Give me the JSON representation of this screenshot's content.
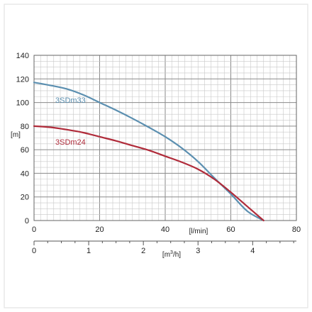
{
  "chart_data": {
    "type": "line",
    "x_flow": {
      "label": "[l/min]",
      "range": [
        0,
        80
      ],
      "ticks": [
        0,
        20,
        40,
        60,
        80
      ],
      "minor_step": 2
    },
    "x_flow_m3h": {
      "label_base": "[m",
      "label_sup": "3",
      "label_tail": "/h]",
      "ticks": [
        0,
        1,
        2,
        3,
        4
      ],
      "minor_per_major": 4
    },
    "y": {
      "label": "[m]",
      "range": [
        0,
        140
      ],
      "ticks": [
        0,
        20,
        40,
        60,
        80,
        100,
        120,
        140
      ],
      "minor_step": 5
    },
    "grid": true,
    "series": [
      {
        "name": "3SDm33",
        "color": "#5b8fb0",
        "x": [
          0,
          5,
          10,
          15,
          20,
          25,
          30,
          35,
          40,
          45,
          50,
          55,
          60,
          65,
          70
        ],
        "y": [
          117,
          114.5,
          111.5,
          106.5,
          100,
          93.5,
          86.5,
          79,
          71,
          61.5,
          50,
          36,
          22.5,
          8,
          0
        ]
      },
      {
        "name": "3SDm24",
        "color": "#b02b3a",
        "x": [
          0,
          5,
          10,
          15,
          20,
          25,
          30,
          35,
          40,
          45,
          50,
          55,
          60,
          65,
          70
        ],
        "y": [
          80,
          79,
          77,
          74.5,
          71,
          67.5,
          63.5,
          59.5,
          54.5,
          49.5,
          43.5,
          35,
          24,
          12,
          0
        ]
      }
    ]
  }
}
